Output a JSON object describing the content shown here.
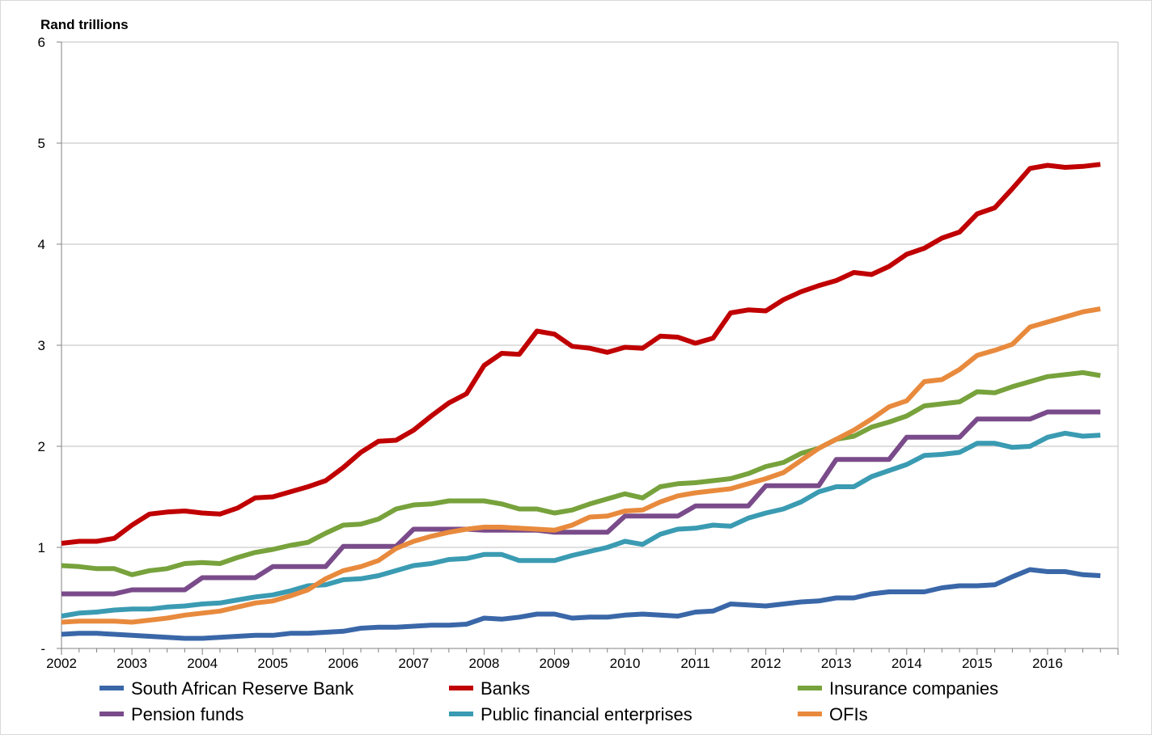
{
  "chart_data": {
    "type": "line",
    "ylabel": "Rand trillions",
    "ylim": [
      0,
      6
    ],
    "yticks": [
      {
        "value": 0,
        "label": "-"
      },
      {
        "value": 1,
        "label": "1"
      },
      {
        "value": 2,
        "label": "2"
      },
      {
        "value": 3,
        "label": "3"
      },
      {
        "value": 4,
        "label": "4"
      },
      {
        "value": 5,
        "label": "5"
      },
      {
        "value": 6,
        "label": "6"
      }
    ],
    "xlim": [
      2002,
      2017
    ],
    "xticks": [
      "2002",
      "2003",
      "2004",
      "2005",
      "2006",
      "2007",
      "2008",
      "2009",
      "2010",
      "2011",
      "2012",
      "2013",
      "2014",
      "2015",
      "2016"
    ],
    "grid": "horizontal",
    "legend_position": "bottom",
    "x": [
      2002.0,
      2002.25,
      2002.5,
      2002.75,
      2003.0,
      2003.25,
      2003.5,
      2003.75,
      2004.0,
      2004.25,
      2004.5,
      2004.75,
      2005.0,
      2005.25,
      2005.5,
      2005.75,
      2006.0,
      2006.25,
      2006.5,
      2006.75,
      2007.0,
      2007.25,
      2007.5,
      2007.75,
      2008.0,
      2008.25,
      2008.5,
      2008.75,
      2009.0,
      2009.25,
      2009.5,
      2009.75,
      2010.0,
      2010.25,
      2010.5,
      2010.75,
      2011.0,
      2011.25,
      2011.5,
      2011.75,
      2012.0,
      2012.25,
      2012.5,
      2012.75,
      2013.0,
      2013.25,
      2013.5,
      2013.75,
      2014.0,
      2014.25,
      2014.5,
      2014.75,
      2015.0,
      2015.25,
      2015.5,
      2015.75,
      2016.0,
      2016.25,
      2016.5,
      2016.75
    ],
    "series": [
      {
        "name": "South African Reserve Bank",
        "color": "#3a67a8",
        "values": [
          0.14,
          0.15,
          0.15,
          0.14,
          0.13,
          0.12,
          0.11,
          0.1,
          0.1,
          0.11,
          0.12,
          0.13,
          0.13,
          0.15,
          0.15,
          0.16,
          0.17,
          0.2,
          0.21,
          0.21,
          0.22,
          0.23,
          0.23,
          0.24,
          0.3,
          0.29,
          0.31,
          0.34,
          0.34,
          0.3,
          0.31,
          0.31,
          0.33,
          0.34,
          0.33,
          0.32,
          0.36,
          0.37,
          0.44,
          0.43,
          0.42,
          0.44,
          0.46,
          0.47,
          0.5,
          0.5,
          0.54,
          0.56,
          0.56,
          0.56,
          0.6,
          0.62,
          0.62,
          0.63,
          0.71,
          0.78,
          0.76,
          0.76,
          0.73,
          0.72
        ]
      },
      {
        "name": "Banks",
        "color": "#c00000",
        "values": [
          1.04,
          1.06,
          1.06,
          1.09,
          1.22,
          1.33,
          1.35,
          1.36,
          1.34,
          1.33,
          1.39,
          1.49,
          1.5,
          1.55,
          1.6,
          1.66,
          1.79,
          1.94,
          2.05,
          2.06,
          2.16,
          2.3,
          2.43,
          2.52,
          2.8,
          2.92,
          2.91,
          3.14,
          3.11,
          2.99,
          2.97,
          2.93,
          2.98,
          2.97,
          3.09,
          3.08,
          3.02,
          3.07,
          3.32,
          3.35,
          3.34,
          3.45,
          3.53,
          3.59,
          3.64,
          3.72,
          3.7,
          3.78,
          3.9,
          3.96,
          4.06,
          4.12,
          4.3,
          4.36,
          4.55,
          4.75,
          4.78,
          4.76,
          4.77,
          4.79
        ]
      },
      {
        "name": "Insurance companies",
        "color": "#77a23c",
        "values": [
          0.82,
          0.81,
          0.79,
          0.79,
          0.73,
          0.77,
          0.79,
          0.84,
          0.85,
          0.84,
          0.9,
          0.95,
          0.98,
          1.02,
          1.05,
          1.14,
          1.22,
          1.23,
          1.28,
          1.38,
          1.42,
          1.43,
          1.46,
          1.46,
          1.46,
          1.43,
          1.38,
          1.38,
          1.34,
          1.37,
          1.43,
          1.48,
          1.53,
          1.49,
          1.6,
          1.63,
          1.64,
          1.66,
          1.68,
          1.73,
          1.8,
          1.84,
          1.93,
          1.98,
          2.07,
          2.1,
          2.19,
          2.24,
          2.3,
          2.4,
          2.42,
          2.44,
          2.54,
          2.53,
          2.59,
          2.64,
          2.69,
          2.71,
          2.73,
          2.7
        ]
      },
      {
        "name": "Pension funds",
        "color": "#7a4b8a",
        "values": [
          0.54,
          0.54,
          0.54,
          0.54,
          0.58,
          0.58,
          0.58,
          0.58,
          0.7,
          0.7,
          0.7,
          0.7,
          0.81,
          0.81,
          0.81,
          0.81,
          1.01,
          1.01,
          1.01,
          1.01,
          1.18,
          1.18,
          1.18,
          1.18,
          1.17,
          1.17,
          1.17,
          1.17,
          1.15,
          1.15,
          1.15,
          1.15,
          1.31,
          1.31,
          1.31,
          1.31,
          1.41,
          1.41,
          1.41,
          1.41,
          1.61,
          1.61,
          1.61,
          1.61,
          1.87,
          1.87,
          1.87,
          1.87,
          2.09,
          2.09,
          2.09,
          2.09,
          2.27,
          2.27,
          2.27,
          2.27,
          2.34,
          2.34,
          2.34,
          2.34
        ]
      },
      {
        "name": "Public financial enterprises",
        "color": "#3a9bb2",
        "values": [
          0.32,
          0.35,
          0.36,
          0.38,
          0.39,
          0.39,
          0.41,
          0.42,
          0.44,
          0.45,
          0.48,
          0.51,
          0.53,
          0.57,
          0.62,
          0.63,
          0.68,
          0.69,
          0.72,
          0.77,
          0.82,
          0.84,
          0.88,
          0.89,
          0.93,
          0.93,
          0.87,
          0.87,
          0.87,
          0.92,
          0.96,
          1.0,
          1.06,
          1.03,
          1.13,
          1.18,
          1.19,
          1.22,
          1.21,
          1.29,
          1.34,
          1.38,
          1.45,
          1.55,
          1.6,
          1.6,
          1.7,
          1.76,
          1.82,
          1.91,
          1.92,
          1.94,
          2.03,
          2.03,
          1.99,
          2.0,
          2.09,
          2.13,
          2.1,
          2.11
        ]
      },
      {
        "name": "OFIs",
        "color": "#e88a3d",
        "values": [
          0.26,
          0.27,
          0.27,
          0.27,
          0.26,
          0.28,
          0.3,
          0.33,
          0.35,
          0.37,
          0.41,
          0.45,
          0.47,
          0.52,
          0.58,
          0.69,
          0.77,
          0.81,
          0.87,
          0.99,
          1.06,
          1.11,
          1.15,
          1.18,
          1.2,
          1.2,
          1.19,
          1.18,
          1.17,
          1.22,
          1.3,
          1.31,
          1.36,
          1.37,
          1.45,
          1.51,
          1.54,
          1.56,
          1.58,
          1.63,
          1.68,
          1.74,
          1.86,
          1.98,
          2.07,
          2.16,
          2.27,
          2.39,
          2.45,
          2.64,
          2.66,
          2.76,
          2.9,
          2.95,
          3.01,
          3.18,
          3.23,
          3.28,
          3.33,
          3.36
        ]
      }
    ]
  }
}
